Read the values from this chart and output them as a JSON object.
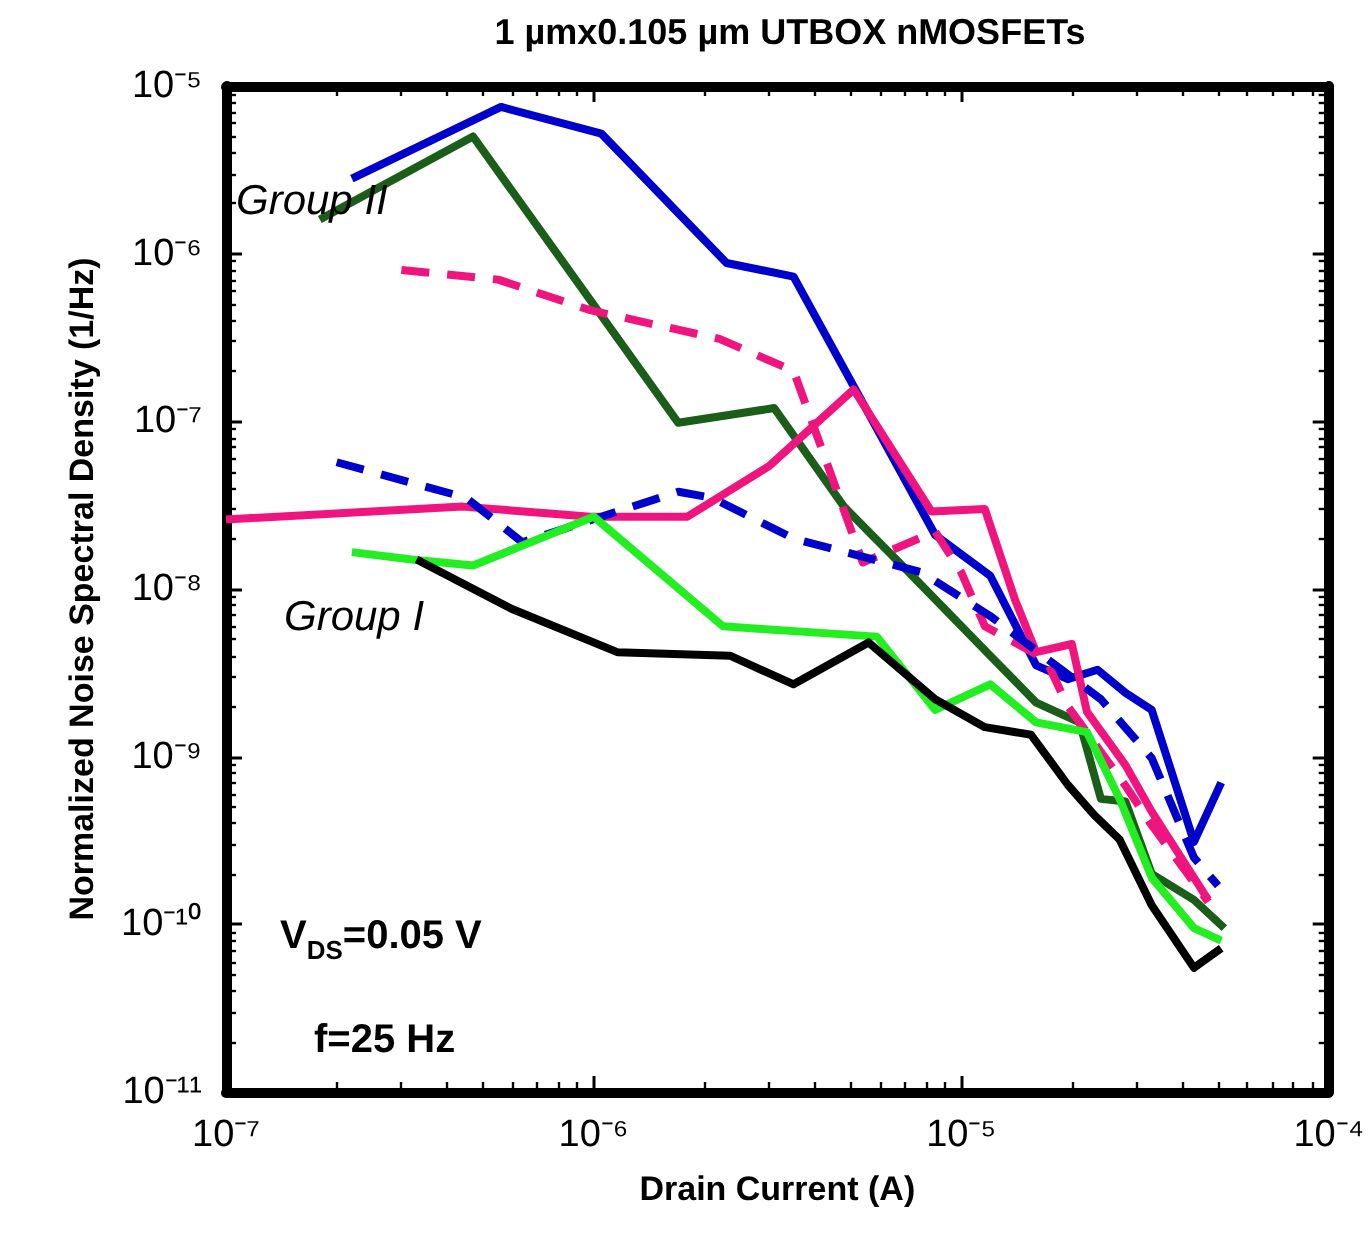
{
  "chart_data": {
    "type": "line",
    "title": "1 µmx0.105 µm UTBOX nMOSFETs",
    "xlabel": "Drain Current (A)",
    "ylabel": "Normalized Noise Spectral Density (1/Hz)",
    "log": "xy",
    "grid": false,
    "marker": "none",
    "xlim": [
      1e-07,
      0.0001
    ],
    "xticks": [
      {
        "value": 1e-07,
        "label": "10⁻⁷"
      },
      {
        "value": 1e-06,
        "label": "10⁻⁶"
      },
      {
        "value": 1e-05,
        "label": "10⁻⁵"
      },
      {
        "value": 0.0001,
        "label": "10⁻⁴"
      }
    ],
    "ylim": [
      1e-11,
      1e-05
    ],
    "yticks": [
      {
        "value": 1e-11,
        "label": "10⁻¹¹"
      },
      {
        "value": 1e-10,
        "label": "10⁻¹⁰"
      },
      {
        "value": 1e-09,
        "label": "10⁻⁹"
      },
      {
        "value": 1e-08,
        "label": "10⁻⁸"
      },
      {
        "value": 1e-07,
        "label": "10⁻⁷"
      },
      {
        "value": 1e-06,
        "label": "10⁻⁶"
      },
      {
        "value": 1e-05,
        "label": "10⁻⁵"
      }
    ],
    "annotations": [
      "Group II",
      "Group I",
      "V$_{DS}$=0.05 V",
      "f=25 Hz"
    ],
    "series": [
      {
        "color": "#0000cc",
        "line_style": "solid",
        "x": [
          2.2e-07,
          5.6e-07,
          1.05e-06,
          2.3e-06,
          3.5e-06,
          8.5e-06,
          1.2e-05,
          1.6e-05,
          1.95e-05,
          2.35e-05,
          2.8e-05,
          3.3e-05,
          4.3e-05,
          5.1e-05
        ],
        "values": [
          2.8e-06,
          7.5e-06,
          5.2e-06,
          8.8e-07,
          7.3e-07,
          2.1e-08,
          1.2e-08,
          3.5e-09,
          2.9e-09,
          3.3e-09,
          2.4e-09,
          1.9e-09,
          3.1e-10,
          7e-10
        ]
      },
      {
        "color": "#1a5e1a",
        "line_style": "solid",
        "x": [
          1.8e-07,
          4.7e-07,
          1.7e-06,
          3.1e-06,
          4.8e-06,
          5.6e-06,
          7.2e-06,
          1.2e-05,
          1.6e-05,
          2.1e-05,
          2.4e-05,
          2.8e-05,
          3.3e-05,
          4.3e-05,
          5.2e-05
        ],
        "values": [
          1.6e-06,
          5e-06,
          9.8e-08,
          1.2e-07,
          3.1e-08,
          2.2e-08,
          1.26e-08,
          4e-09,
          2.1e-09,
          1.6e-09,
          5.6e-10,
          5.4e-10,
          2e-10,
          1.4e-10,
          9.5e-11
        ]
      },
      {
        "color": "#f0147f",
        "line_style": "dashed",
        "x": [
          3e-07,
          5.5e-07,
          9.8e-07,
          2.2e-06,
          3.5e-06,
          5.4e-06,
          8.5e-06,
          1e-05,
          1.16e-05,
          1.7e-05,
          1.95e-05,
          2.8e-05,
          3.3e-05,
          4.7e-05
        ],
        "values": [
          8e-07,
          7e-07,
          4.6e-07,
          3.1e-07,
          2e-07,
          1.44e-08,
          2.2e-08,
          1.26e-08,
          6e-09,
          3.8e-09,
          2e-09,
          6.7e-10,
          3.9e-10,
          1.36e-10
        ]
      },
      {
        "color": "#f0147f",
        "line_style": "solid",
        "x": [
          1e-07,
          4.4e-07,
          9.8e-07,
          1.8e-06,
          3e-06,
          5.1e-06,
          8.3e-06,
          1.16e-05,
          1.4e-05,
          1.6e-05,
          2e-05,
          2.2e-05,
          2.8e-05,
          3.3e-05,
          4.7e-05
        ],
        "values": [
          2.6e-08,
          3.1e-08,
          2.7e-08,
          2.7e-08,
          5.4e-08,
          1.55e-07,
          2.9e-08,
          3e-08,
          8.7e-09,
          4.2e-09,
          4.7e-09,
          1.85e-09,
          8.9e-10,
          4.7e-10,
          1.4e-10
        ]
      },
      {
        "color": "#0000cc",
        "line_style": "dashed",
        "x": [
          2e-07,
          4.5e-07,
          6.4e-07,
          1.7e-06,
          2.1e-06,
          3.5e-06,
          7.8e-06,
          1.2e-05,
          2.4e-05,
          3.3e-05,
          4.3e-05,
          5e-05
        ],
        "values": [
          5.7e-08,
          3.5e-08,
          1.9e-08,
          3.8e-08,
          3.5e-08,
          2e-08,
          1.26e-08,
          6.9e-09,
          2.2e-09,
          9.8e-10,
          2.5e-10,
          1.7e-10
        ]
      },
      {
        "color": "#22ee22",
        "line_style": "solid",
        "x": [
          2.2e-07,
          3.2e-07,
          4.7e-07,
          1e-06,
          2.25e-06,
          2.8e-06,
          5.9e-06,
          8.5e-06,
          1.2e-05,
          1.6e-05,
          2.2e-05,
          2.7e-05,
          3.3e-05,
          4.3e-05,
          5.1e-05
        ],
        "values": [
          1.66e-08,
          1.5e-08,
          1.38e-08,
          2.7e-08,
          6e-09,
          5.8e-09,
          5.2e-09,
          1.9e-09,
          2.7e-09,
          1.6e-09,
          1.4e-09,
          5.6e-10,
          1.9e-10,
          9.5e-11,
          8e-11
        ]
      },
      {
        "color": "#000000",
        "line_style": "solid",
        "x": [
          3.3e-07,
          6e-07,
          1.16e-06,
          2.35e-06,
          3.5e-06,
          5.6e-06,
          8.5e-06,
          1.16e-05,
          1.55e-05,
          1.95e-05,
          2.3e-05,
          2.7e-05,
          3.3e-05,
          4.3e-05,
          5.1e-05
        ],
        "values": [
          1.5e-08,
          7.6e-09,
          4.2e-09,
          4e-09,
          2.7e-09,
          4.8e-09,
          2.2e-09,
          1.5e-09,
          1.35e-09,
          6.8e-10,
          4.5e-10,
          3.2e-10,
          1.3e-10,
          5.5e-11,
          7.2e-11
        ]
      }
    ]
  }
}
